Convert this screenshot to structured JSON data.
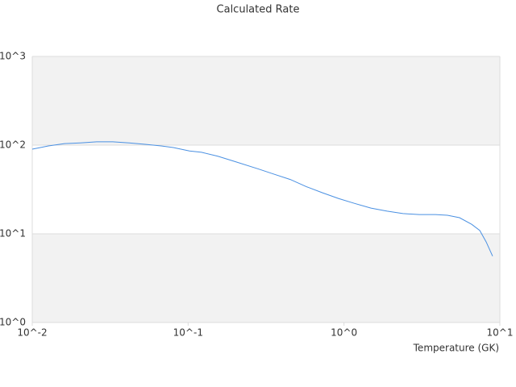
{
  "chart_data": {
    "type": "line",
    "title": "Calculated Rate",
    "x_label": "Temperature (GK)",
    "x": [
      0.01,
      0.0127,
      0.0161,
      0.0204,
      0.0259,
      0.0329,
      0.0418,
      0.053,
      0.0672,
      0.0804,
      0.102,
      0.122,
      0.155,
      0.196,
      0.281,
      0.356,
      0.452,
      0.574,
      0.728,
      0.924,
      1.17,
      1.49,
      1.89,
      2.39,
      3.04,
      3.86,
      4.61,
      5.51,
      6.59,
      7.43,
      8.17,
      8.98
    ],
    "series": [
      {
        "color": "#4a90e2",
        "values": [
          90,
          98,
          104,
          106,
          109,
          109,
          106,
          102,
          98,
          94,
          86,
          83,
          75,
          66,
          54,
          47,
          41,
          34,
          29,
          25,
          22,
          19.5,
          18,
          16.9,
          16.5,
          16.5,
          16.2,
          15.2,
          12.8,
          10.9,
          8.1,
          5.6
        ]
      }
    ],
    "xlog": true,
    "ylog": true,
    "xlim": [
      0.01,
      10
    ],
    "ylim": [
      1,
      1000
    ],
    "xticks": [
      {
        "value": 0.01,
        "label": "10^-2"
      },
      {
        "value": 0.1,
        "label": "10^-1"
      },
      {
        "value": 1,
        "label": "10^0"
      },
      {
        "value": 10,
        "label": "10^1"
      }
    ],
    "yticks": [
      {
        "value": 1,
        "label": "10^0"
      },
      {
        "value": 10,
        "label": "10^1"
      },
      {
        "value": 100,
        "label": "10^2"
      },
      {
        "value": 1000,
        "label": "10^3"
      }
    ],
    "grid": true
  }
}
